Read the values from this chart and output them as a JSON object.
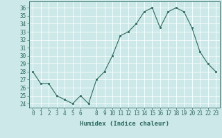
{
  "x": [
    0,
    1,
    2,
    3,
    4,
    5,
    6,
    7,
    8,
    9,
    10,
    11,
    12,
    13,
    14,
    15,
    16,
    17,
    18,
    19,
    20,
    21,
    22,
    23
  ],
  "y": [
    28,
    26.5,
    26.5,
    25,
    24.5,
    24,
    25,
    24,
    27,
    28,
    30,
    32.5,
    33,
    34,
    35.5,
    36,
    33.5,
    35.5,
    36,
    35.5,
    33.5,
    30.5,
    29,
    28
  ],
  "xlabel": "Humidex (Indice chaleur)",
  "xlim": [
    -0.5,
    23.5
  ],
  "ylim": [
    23.5,
    36.8
  ],
  "yticks": [
    24,
    25,
    26,
    27,
    28,
    29,
    30,
    31,
    32,
    33,
    34,
    35,
    36
  ],
  "xticks": [
    0,
    1,
    2,
    3,
    4,
    5,
    6,
    8,
    9,
    10,
    11,
    12,
    13,
    14,
    15,
    16,
    17,
    18,
    19,
    20,
    21,
    22,
    23
  ],
  "line_color": "#2e6b5e",
  "bg_color": "#cce8e8",
  "grid_color": "#ffffff",
  "marker_size": 2.0,
  "tick_fontsize": 5.5,
  "xlabel_fontsize": 6.5
}
